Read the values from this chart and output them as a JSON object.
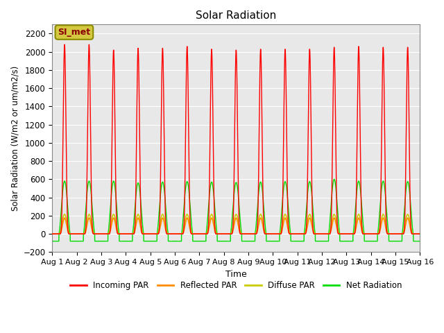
{
  "title": "Solar Radiation",
  "ylabel": "Solar Radiation (W/m2 or um/m2/s)",
  "xlabel": "Time",
  "ylim": [
    -200,
    2300
  ],
  "yticks": [
    -200,
    0,
    200,
    400,
    600,
    800,
    1000,
    1200,
    1400,
    1600,
    1800,
    2000,
    2200
  ],
  "n_days": 15,
  "annotation_text": "SI_met",
  "annotation_box_color": "#d4c840",
  "annotation_text_color": "#8b0000",
  "annotation_edge_color": "#8b8b00",
  "colors": {
    "incoming": "#ff0000",
    "reflected": "#ff8c00",
    "diffuse": "#cccc00",
    "net": "#00dd00"
  },
  "legend_labels": [
    "Incoming PAR",
    "Reflected PAR",
    "Diffuse PAR",
    "Net Radiation"
  ],
  "background_color": "#e8e8e8",
  "grid_color": "#ffffff",
  "incoming_peaks": [
    2080,
    2080,
    2020,
    2040,
    2040,
    2060,
    2030,
    2020,
    2030,
    2030,
    2030,
    2050,
    2060,
    2050,
    2050
  ],
  "net_peaks": [
    580,
    580,
    580,
    560,
    570,
    575,
    570,
    565,
    570,
    575,
    575,
    600,
    580,
    580,
    575
  ],
  "reflected_peak": 175,
  "diffuse_peak": 215,
  "night_net": -80
}
